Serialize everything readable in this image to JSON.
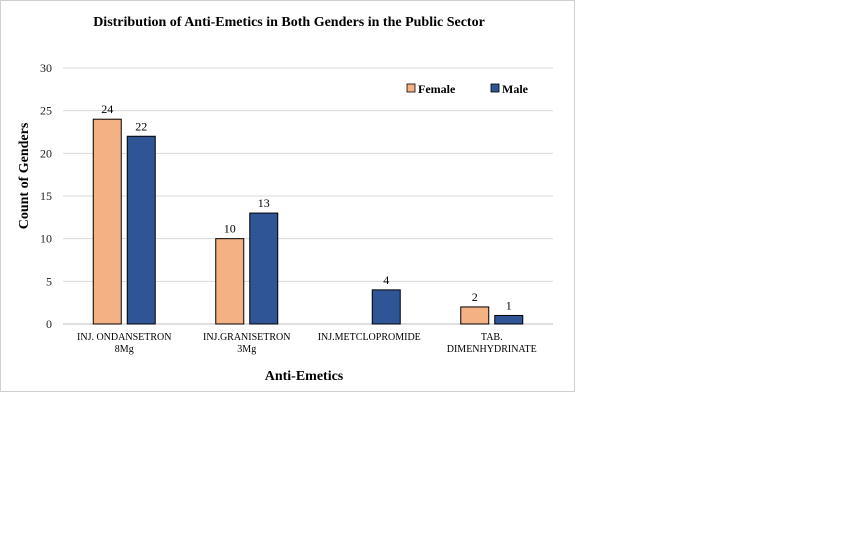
{
  "chart_data": {
    "type": "bar",
    "title": "Distribution  of Anti-Emetics  in Both Genders in the Public  Sector",
    "xlabel": "Anti-Emetics",
    "ylabel": "Count of Genders",
    "ylim": [
      0,
      30
    ],
    "yticks": [
      0,
      5,
      10,
      15,
      20,
      25,
      30
    ],
    "grid": true,
    "legend_position": "top-right",
    "categories": [
      [
        "INJ. ONDANSETRON",
        "8Mg"
      ],
      [
        "INJ.GRANISETRON",
        "3Mg"
      ],
      [
        "INJ.METCLOPROMIDE"
      ],
      [
        "TAB.",
        "DIMENHYDRINATE"
      ]
    ],
    "series": [
      {
        "name": "Female",
        "color": "#f4b183",
        "values": [
          24,
          10,
          null,
          2
        ]
      },
      {
        "name": "Male",
        "color": "#2f5597",
        "values": [
          22,
          13,
          4,
          1
        ]
      }
    ]
  }
}
